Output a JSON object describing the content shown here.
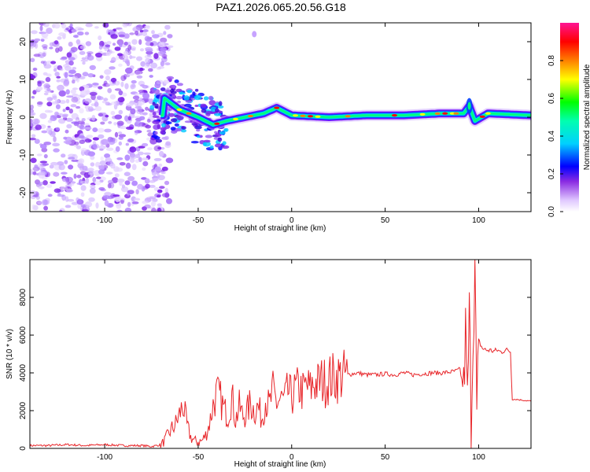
{
  "title": "PAZ1.2026.065.20.56.G18",
  "chart_data": [
    {
      "type": "heatmap",
      "xlabel": "Height of straight line (km)",
      "ylabel": "Frequency (Hz)",
      "xlim": [
        -140,
        128
      ],
      "ylim": [
        -25,
        25
      ],
      "xticks": [
        -100,
        -50,
        0,
        50,
        100
      ],
      "yticks": [
        -20,
        -10,
        0,
        10,
        20
      ],
      "colorbar": {
        "label": "Normalized spectral amplitude",
        "range": [
          0,
          1
        ],
        "ticks": [
          0.0,
          0.2,
          0.4,
          0.6,
          0.8
        ],
        "colormap": [
          "#ffffff",
          "#8a2be2",
          "#0000ff",
          "#00ffff",
          "#00ff00",
          "#ffff00",
          "#ff8000",
          "#ff0000",
          "#ff1493"
        ]
      },
      "ridge": {
        "description_points": [
          {
            "x": -68,
            "y": 5
          },
          {
            "x": -60,
            "y": 2
          },
          {
            "x": -50,
            "y": 0
          },
          {
            "x": -42,
            "y": -2
          },
          {
            "x": -35,
            "y": -1
          },
          {
            "x": -25,
            "y": 0
          },
          {
            "x": -15,
            "y": 1
          },
          {
            "x": -8,
            "y": 2.5
          },
          {
            "x": 0,
            "y": 0.5
          },
          {
            "x": 20,
            "y": 0
          },
          {
            "x": 40,
            "y": 0.5
          },
          {
            "x": 60,
            "y": 0.5
          },
          {
            "x": 80,
            "y": 1
          },
          {
            "x": 92,
            "y": 1
          },
          {
            "x": 95,
            "y": 3
          },
          {
            "x": 98,
            "y": -1
          },
          {
            "x": 105,
            "y": 1
          },
          {
            "x": 128,
            "y": 0.5
          }
        ]
      }
    },
    {
      "type": "line",
      "xlabel": "Height of straight line (km)",
      "ylabel": "SNR (10 * v/v)",
      "xlim": [
        -140,
        128
      ],
      "ylim": [
        0,
        10000
      ],
      "xticks": [
        -100,
        -50,
        0,
        50,
        100
      ],
      "yticks": [
        0,
        2000,
        4000,
        6000,
        8000
      ],
      "color": "#e8262a",
      "series": [
        {
          "values_x": [
            -140,
            -130,
            -120,
            -110,
            -100,
            -90,
            -80,
            -75,
            -70,
            -68,
            -65,
            -62,
            -60,
            -58,
            -56,
            -54,
            -52,
            -50,
            -48,
            -46,
            -44,
            -42,
            -40,
            -38,
            -36,
            -34,
            -32,
            -30,
            -28,
            -26,
            -24,
            -22,
            -20,
            -18,
            -16,
            -14,
            -12,
            -10,
            -8,
            -6,
            -4,
            -2,
            0,
            2,
            4,
            6,
            8,
            10,
            12,
            14,
            16,
            18,
            20,
            25,
            30,
            35,
            40,
            45,
            50,
            55,
            60,
            65,
            70,
            75,
            80,
            85,
            88,
            90,
            92,
            93,
            94,
            95,
            96,
            97,
            98,
            99,
            100,
            101,
            102,
            104,
            106,
            108,
            110,
            112,
            114,
            116,
            117,
            118,
            120,
            124,
            128
          ],
          "values_y": [
            150,
            150,
            200,
            150,
            200,
            150,
            150,
            100,
            200,
            400,
            900,
            1300,
            1800,
            2300,
            1200,
            600,
            400,
            350,
            400,
            700,
            1300,
            2300,
            2900,
            2600,
            2000,
            1800,
            2800,
            1500,
            2200,
            1700,
            1900,
            2400,
            2000,
            2200,
            1600,
            2600,
            2200,
            3000,
            2400,
            2600,
            2500,
            3000,
            2700,
            3100,
            3200,
            3000,
            3300,
            3100,
            3500,
            3400,
            3600,
            3500,
            3700,
            3800,
            3900,
            4000,
            3900,
            3900,
            3950,
            3900,
            4000,
            3900,
            3950,
            4000,
            4000,
            4050,
            4100,
            4200,
            3000,
            6200,
            2200,
            7200,
            1500,
            6000,
            9800,
            1600,
            5700,
            5500,
            5300,
            5200,
            5200,
            5150,
            5200,
            5100,
            5200,
            5200,
            5100,
            2600,
            2600,
            2550,
            2500
          ]
        }
      ]
    }
  ]
}
